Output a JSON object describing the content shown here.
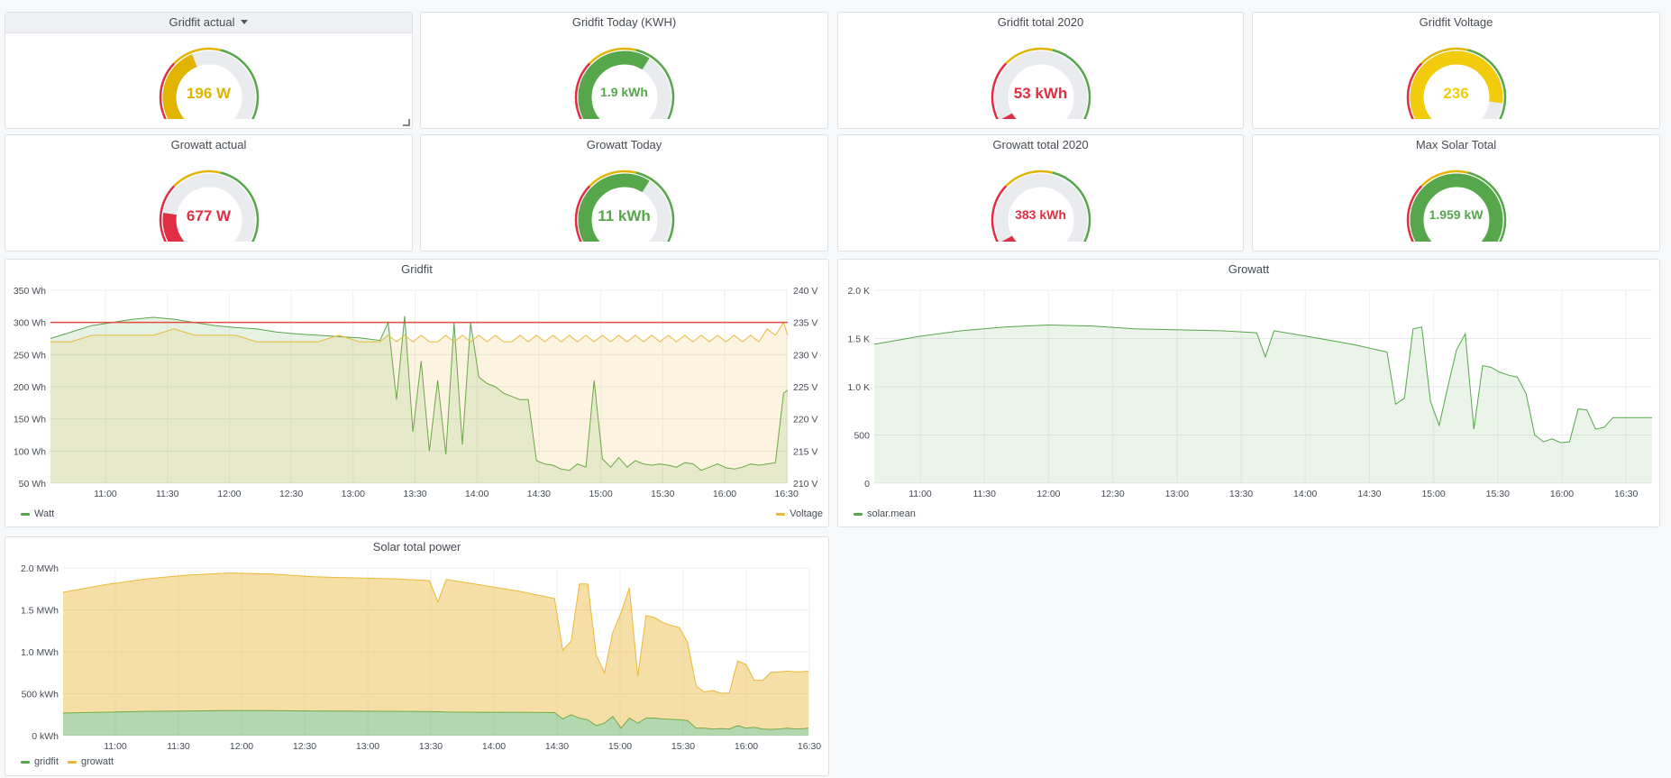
{
  "gauges": [
    {
      "title": "Gridfit actual",
      "value": "196 W",
      "color": "#e0b400",
      "fraction": 0.42,
      "active": true
    },
    {
      "title": "Gridfit Today (KWH)",
      "value": "1.9 kWh",
      "color": "#56a64b",
      "fraction": 0.62
    },
    {
      "title": "Gridfit total 2020",
      "value": "53 kWh",
      "color": "#e02f44",
      "fraction": 0.06
    },
    {
      "title": "Gridfit Voltage",
      "value": "236",
      "color": "#f2cc0c",
      "fraction": 0.86
    },
    {
      "title": "Growatt actual",
      "value": "677 W",
      "color": "#e02f44",
      "fraction": 0.2
    },
    {
      "title": "Growatt Today",
      "value": "11 kWh",
      "color": "#56a64b",
      "fraction": 0.62
    },
    {
      "title": "Growatt total 2020",
      "value": "383 kWh",
      "color": "#e02f44",
      "fraction": 0.06
    },
    {
      "title": "Max Solar Total",
      "value": "1.959 kW",
      "color": "#56a64b",
      "fraction": 1.0
    }
  ],
  "panels": {
    "gridfit": {
      "title": "Gridfit"
    },
    "growatt": {
      "title": "Growatt"
    },
    "solar": {
      "title": "Solar total power"
    }
  },
  "chart_data": [
    {
      "type": "line",
      "title": "Gridfit",
      "x_ticks": [
        "11:00",
        "11:30",
        "12:00",
        "12:30",
        "13:00",
        "13:30",
        "14:00",
        "14:30",
        "15:00",
        "15:30",
        "16:00",
        "16:30"
      ],
      "y_left_ticks": [
        "50 Wh",
        "100 Wh",
        "150 Wh",
        "200 Wh",
        "250 Wh",
        "300 Wh",
        "350 Wh"
      ],
      "y_right_ticks": [
        "210 V",
        "215 V",
        "220 V",
        "225 V",
        "230 V",
        "235 V",
        "240 V"
      ],
      "ylim_left": [
        50,
        350
      ],
      "ylim_right": [
        210,
        240
      ],
      "threshold": 300,
      "x": [
        0,
        5,
        10,
        15,
        20,
        25,
        30,
        35,
        40,
        45,
        50,
        55,
        60,
        65,
        70,
        75,
        80,
        82,
        84,
        86,
        88,
        90,
        92,
        94,
        96,
        98,
        100,
        102,
        104,
        106,
        108,
        110,
        112,
        114,
        116,
        118,
        120,
        122,
        124,
        126,
        128,
        130,
        132,
        134,
        136,
        138,
        140,
        142,
        144,
        146,
        148,
        150,
        152,
        154,
        156,
        158,
        160,
        162,
        164,
        166,
        168,
        170,
        172,
        174,
        176,
        178,
        179
      ],
      "series": [
        {
          "name": "Watt",
          "axis": "left",
          "color": "#56a64b",
          "values": [
            275,
            285,
            295,
            300,
            305,
            308,
            305,
            300,
            295,
            292,
            290,
            285,
            282,
            280,
            278,
            276,
            272,
            300,
            180,
            310,
            130,
            240,
            100,
            210,
            95,
            300,
            110,
            300,
            215,
            205,
            200,
            190,
            185,
            180,
            180,
            85,
            80,
            78,
            72,
            70,
            80,
            75,
            210,
            88,
            75,
            90,
            75,
            85,
            80,
            78,
            80,
            78,
            75,
            82,
            80,
            70,
            75,
            80,
            74,
            72,
            75,
            80,
            78,
            80,
            82,
            190,
            195
          ]
        },
        {
          "name": "Voltage",
          "axis": "right",
          "color": "#eab839",
          "values": [
            232,
            232,
            233,
            233,
            233,
            233,
            234,
            233,
            233,
            233,
            232,
            232,
            232,
            232,
            233,
            232,
            232,
            233,
            232,
            233,
            232,
            233,
            232,
            232,
            233,
            232,
            233,
            232,
            233,
            232,
            233,
            232,
            232,
            233,
            232,
            233,
            232,
            233,
            232,
            233,
            232,
            233,
            232,
            233,
            232,
            233,
            232,
            233,
            232,
            233,
            232,
            233,
            232,
            233,
            232,
            233,
            232,
            233,
            232,
            233,
            232,
            233,
            232,
            234,
            233,
            235,
            233
          ]
        }
      ],
      "legend": [
        "Watt",
        "Voltage"
      ]
    },
    {
      "type": "area",
      "title": "Growatt",
      "x_ticks": [
        "11:00",
        "11:30",
        "12:00",
        "12:30",
        "13:00",
        "13:30",
        "14:00",
        "14:30",
        "15:00",
        "15:30",
        "16:00",
        "16:30"
      ],
      "y_ticks": [
        "0",
        "500",
        "1.0 K",
        "1.5 K",
        "2.0 K"
      ],
      "ylim": [
        0,
        2000
      ],
      "x": [
        0,
        10,
        20,
        30,
        40,
        50,
        60,
        70,
        80,
        88,
        90,
        92,
        100,
        110,
        118,
        120,
        122,
        124,
        126,
        128,
        130,
        132,
        134,
        136,
        138,
        140,
        142,
        144,
        146,
        148,
        150,
        152,
        154,
        156,
        158,
        160,
        162,
        164,
        166,
        168,
        170,
        172,
        174,
        176,
        178,
        179
      ],
      "series": [
        {
          "name": "solar.mean",
          "color": "#56a64b",
          "values": [
            1440,
            1520,
            1580,
            1620,
            1640,
            1630,
            1600,
            1590,
            1580,
            1560,
            1310,
            1580,
            1520,
            1440,
            1360,
            820,
            880,
            1600,
            1620,
            850,
            600,
            1000,
            1380,
            1550,
            560,
            1220,
            1200,
            1150,
            1120,
            1100,
            930,
            500,
            430,
            460,
            420,
            430,
            770,
            760,
            560,
            580,
            680,
            680,
            680,
            680,
            680,
            680
          ]
        }
      ],
      "legend": [
        "solar.mean"
      ]
    },
    {
      "type": "area",
      "title": "Solar total power",
      "stacked": true,
      "x_ticks": [
        "11:00",
        "11:30",
        "12:00",
        "12:30",
        "13:00",
        "13:30",
        "14:00",
        "14:30",
        "15:00",
        "15:30",
        "16:00",
        "16:30"
      ],
      "y_ticks": [
        "0 kWh",
        "500 kWh",
        "1.0 MWh",
        "1.5 MWh",
        "2.0 MWh"
      ],
      "ylim": [
        0,
        2000
      ],
      "x": [
        0,
        10,
        20,
        30,
        40,
        50,
        60,
        70,
        80,
        88,
        90,
        92,
        100,
        110,
        118,
        120,
        122,
        124,
        126,
        128,
        130,
        132,
        134,
        136,
        138,
        140,
        142,
        144,
        146,
        148,
        150,
        152,
        154,
        156,
        158,
        160,
        162,
        164,
        166,
        168,
        170,
        172,
        174,
        176,
        178,
        179
      ],
      "series": [
        {
          "name": "gridfit",
          "color": "#56a64b",
          "values": [
            270,
            280,
            290,
            295,
            300,
            298,
            295,
            292,
            290,
            288,
            285,
            282,
            280,
            278,
            275,
            200,
            250,
            210,
            190,
            120,
            150,
            230,
            90,
            210,
            150,
            210,
            210,
            200,
            195,
            190,
            180,
            90,
            90,
            80,
            85,
            80,
            120,
            90,
            100,
            80,
            75,
            80,
            90,
            80,
            85,
            90
          ]
        },
        {
          "name": "growatt",
          "color": "#eab839",
          "values": [
            1440,
            1520,
            1580,
            1620,
            1640,
            1630,
            1600,
            1590,
            1580,
            1560,
            1310,
            1580,
            1520,
            1440,
            1360,
            820,
            880,
            1600,
            1620,
            850,
            600,
            1000,
            1380,
            1550,
            560,
            1220,
            1200,
            1150,
            1120,
            1100,
            930,
            500,
            430,
            460,
            420,
            430,
            770,
            760,
            560,
            580,
            680,
            680,
            680,
            680,
            680,
            680
          ]
        }
      ],
      "legend": [
        "gridfit",
        "growatt"
      ]
    }
  ]
}
